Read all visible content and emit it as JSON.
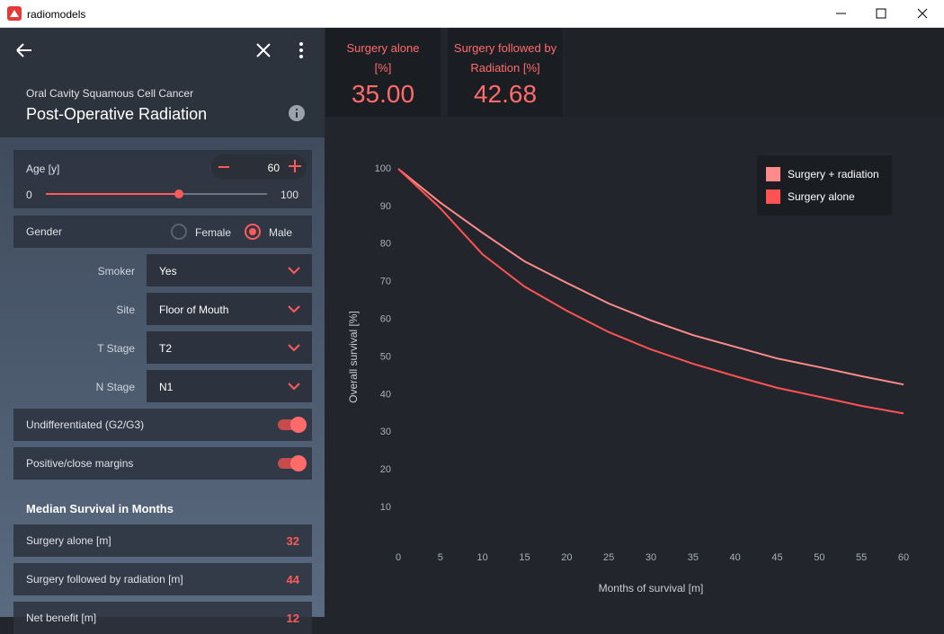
{
  "window": {
    "title": "radiomodels"
  },
  "header": {
    "subtitle": "Oral Cavity Squamous Cell Cancer",
    "title": "Post-Operative Radiation"
  },
  "age": {
    "label": "Age [y]",
    "value": 60,
    "min": 0,
    "max": 100
  },
  "gender": {
    "label": "Gender",
    "options": [
      "Female",
      "Male"
    ],
    "selected": 1
  },
  "selects": [
    {
      "label": "Smoker",
      "value": "Yes"
    },
    {
      "label": "Site",
      "value": "Floor of Mouth"
    },
    {
      "label": "T Stage",
      "value": "T2"
    },
    {
      "label": "N Stage",
      "value": "N1"
    }
  ],
  "toggles": [
    {
      "label": "Undifferentiated (G2/G3)",
      "on": true
    },
    {
      "label": "Positive/close margins",
      "on": true
    }
  ],
  "median": {
    "title": "Median Survival in Months",
    "rows": [
      {
        "label": "Surgery alone [m]",
        "value": 32
      },
      {
        "label": "Surgery followed by radiation [m]",
        "value": 44
      },
      {
        "label": "Net benefit [m]",
        "value": 12
      }
    ]
  },
  "cards": [
    {
      "label": "Surgery alone [%]",
      "value": "35.00"
    },
    {
      "label": "Surgery followed by Radiation [%]",
      "value": "42.68"
    }
  ],
  "chart_data": {
    "type": "line",
    "x": [
      0,
      5,
      10,
      15,
      20,
      25,
      30,
      35,
      40,
      45,
      50,
      55,
      60
    ],
    "series": [
      {
        "name": "Surgery + radiation",
        "color": "#ff8a8a",
        "values": [
          100,
          91,
          83,
          75.4,
          69.7,
          64.2,
          59.7,
          55.8,
          52.7,
          49.6,
          47.3,
          44.9,
          42.68
        ]
      },
      {
        "name": "Surgery alone",
        "color": "#ff5252",
        "values": [
          100,
          89.5,
          77.3,
          68.7,
          62.3,
          56.6,
          52,
          48.2,
          44.9,
          41.8,
          39.4,
          37,
          35
        ]
      }
    ],
    "xlim": [
      0,
      60
    ],
    "xticks": [
      0,
      5,
      10,
      15,
      20,
      25,
      30,
      35,
      40,
      45,
      50,
      55,
      60
    ],
    "ylim": [
      0,
      100
    ],
    "yticks": [
      10,
      20,
      30,
      40,
      50,
      60,
      70,
      80,
      90,
      100
    ],
    "xlabel": "Months of survival [m]",
    "ylabel": "Overall survival [%]",
    "legend": "upper right"
  }
}
